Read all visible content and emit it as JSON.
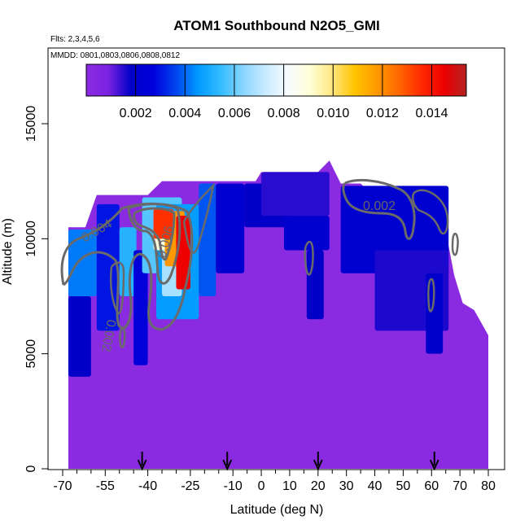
{
  "chart_data": {
    "type": "heatmap",
    "title": "ATOM1 Southbound N2O5_GMI",
    "flights_note": "Flts: 2,3,4,5,6",
    "dates_note": "MMDD: 0801,0803,0806,0808,0812",
    "xlabel": "Latitude (deg N)",
    "ylabel": "Altitude (m)",
    "xlim": [
      -70,
      80
    ],
    "ylim": [
      0,
      17500
    ],
    "x_ticks": [
      -70,
      -55,
      -40,
      -25,
      -10,
      0,
      10,
      20,
      30,
      40,
      50,
      60,
      70,
      80
    ],
    "x_tick_labels": [
      "-70",
      "-55",
      "-40",
      "-25",
      "-10",
      "0",
      "10",
      "20",
      "30",
      "40",
      "50",
      "60",
      "70",
      "80"
    ],
    "x_minor_ticks": [
      -65,
      -60,
      -50,
      -45,
      -35,
      -30,
      -20,
      -15,
      -5,
      5,
      15,
      25,
      35,
      45,
      55,
      65,
      75
    ],
    "y_ticks": [
      0,
      5000,
      10000,
      15000
    ],
    "y_tick_labels": [
      "0",
      "5000",
      "10000",
      "15000"
    ],
    "colorbar": {
      "min": 0.0,
      "max": 0.0154,
      "ticks": [
        0.002,
        0.004,
        0.006,
        0.008,
        0.01,
        0.012,
        0.014
      ],
      "tick_labels": [
        "0.002",
        "0.004",
        "0.006",
        "0.008",
        "0.010",
        "0.012",
        "0.014"
      ],
      "colors": [
        "#8a2be2",
        "#7a22e0",
        "#0000c8",
        "#0000dd",
        "#0044ee",
        "#0099ff",
        "#33bbff",
        "#88d6ff",
        "#c8eaff",
        "#f8fbff",
        "#ffffd8",
        "#ffe680",
        "#ffc400",
        "#ff9900",
        "#ff6600",
        "#ff2a00",
        "#ee0000",
        "#b22222"
      ]
    },
    "profile_top": [
      [
        -68,
        10500
      ],
      [
        -62,
        10500
      ],
      [
        -58,
        11900
      ],
      [
        -50,
        11900
      ],
      [
        -45,
        11900
      ],
      [
        -40,
        11900
      ],
      [
        -35,
        12500
      ],
      [
        -25,
        12500
      ],
      [
        -20,
        12500
      ],
      [
        -12,
        12500
      ],
      [
        -2,
        12500
      ],
      [
        0,
        12900
      ],
      [
        10,
        12900
      ],
      [
        20,
        12900
      ],
      [
        24,
        13400
      ],
      [
        28,
        12400
      ],
      [
        35,
        12400
      ],
      [
        41,
        11700
      ],
      [
        45,
        11700
      ],
      [
        50,
        11200
      ],
      [
        55,
        10900
      ],
      [
        59,
        10700
      ],
      [
        64,
        10300
      ],
      [
        66,
        9700
      ],
      [
        68,
        8400
      ],
      [
        71,
        7200
      ],
      [
        75,
        6900
      ],
      [
        80,
        5800
      ]
    ],
    "concentration_regions": [
      {
        "lat_range": [
          -68,
          -58
        ],
        "alt_range": [
          7500,
          10400
        ],
        "value": 0.0042
      },
      {
        "lat_range": [
          -68,
          -60
        ],
        "alt_range": [
          4000,
          7500
        ],
        "value": 0.0018
      },
      {
        "lat_range": [
          -58,
          -50
        ],
        "alt_range": [
          6000,
          11500
        ],
        "value": 0.003
      },
      {
        "lat_range": [
          -50,
          -44
        ],
        "alt_range": [
          7500,
          10500
        ],
        "value": 0.0052
      },
      {
        "lat_range": [
          -45,
          -40
        ],
        "alt_range": [
          4500,
          9500
        ],
        "value": 0.0025
      },
      {
        "lat_range": [
          -42,
          -28
        ],
        "alt_range": [
          8500,
          11800
        ],
        "value": 0.0058
      },
      {
        "lat_range": [
          -37,
          -22
        ],
        "alt_range": [
          6500,
          11500
        ],
        "value": 0.0046
      },
      {
        "lat_range": [
          -35,
          -28
        ],
        "alt_range": [
          7500,
          9500
        ],
        "value": 0.0068
      },
      {
        "lat_range": [
          -38,
          -30
        ],
        "alt_range": [
          9500,
          11200
        ],
        "value": 0.009
      },
      {
        "lat_range": [
          -34,
          -27
        ],
        "alt_range": [
          8800,
          11200
        ],
        "value": 0.0118
      },
      {
        "lat_range": [
          -38,
          -31
        ],
        "alt_range": [
          10000,
          11300
        ],
        "value": 0.0135
      },
      {
        "lat_range": [
          -30,
          -25
        ],
        "alt_range": [
          7800,
          11000
        ],
        "value": 0.0145
      },
      {
        "lat_range": [
          -22,
          -16
        ],
        "alt_range": [
          7500,
          12400
        ],
        "value": 0.0038
      },
      {
        "lat_range": [
          -16,
          -6
        ],
        "alt_range": [
          8500,
          12400
        ],
        "value": 0.0022
      },
      {
        "lat_range": [
          -6,
          10
        ],
        "alt_range": [
          10500,
          12400
        ],
        "value": 0.0018
      },
      {
        "lat_range": [
          0,
          24
        ],
        "alt_range": [
          11000,
          12900
        ],
        "value": 0.0015
      },
      {
        "lat_range": [
          8,
          24
        ],
        "alt_range": [
          9500,
          11000
        ],
        "value": 0.0021
      },
      {
        "lat_range": [
          16,
          22
        ],
        "alt_range": [
          6500,
          9500
        ],
        "value": 0.0018
      },
      {
        "lat_range": [
          28,
          66
        ],
        "alt_range": [
          8500,
          12300
        ],
        "value": 0.0021
      },
      {
        "lat_range": [
          40,
          66
        ],
        "alt_range": [
          6000,
          9500
        ],
        "value": 0.0016
      },
      {
        "lat_range": [
          58,
          64
        ],
        "alt_range": [
          5000,
          8500
        ],
        "value": 0.0019
      }
    ],
    "contour_labels": [
      "0.002",
      "0.002",
      "0.004",
      "0.006"
    ],
    "flight_markers_lat": [
      -42,
      -12,
      20,
      61
    ]
  }
}
